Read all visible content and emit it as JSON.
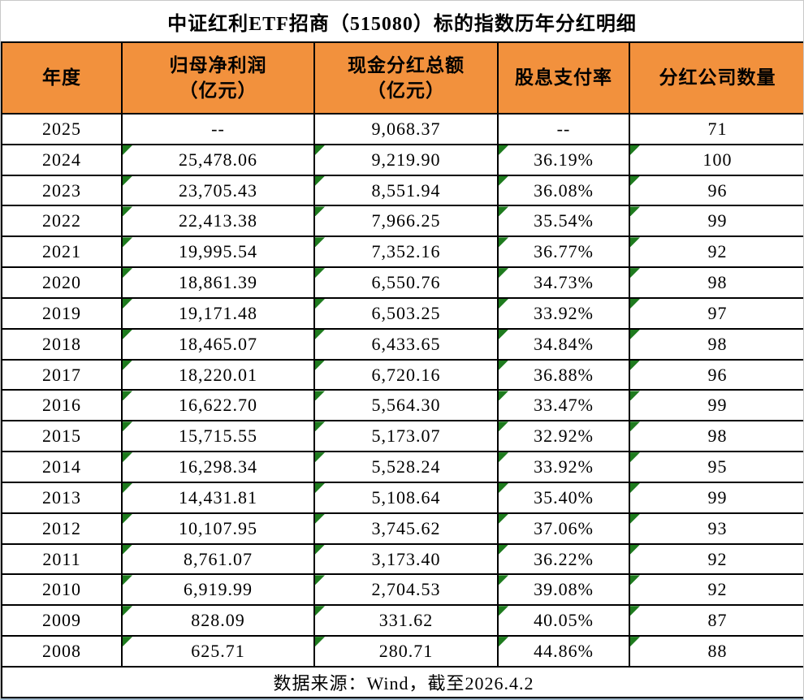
{
  "title": "中证红利ETF招商（515080）标的指数历年分红明细",
  "footer": {
    "source": "数据来源：Wind，截至2026.4.2"
  },
  "colors": {
    "header_bg": "#F2913D",
    "flag_green": "#1E7B1E",
    "border": "#000000"
  },
  "table": {
    "columns": [
      {
        "label": "年度"
      },
      {
        "label": "归母净利润",
        "sub": "（亿元）"
      },
      {
        "label": "现金分红总额",
        "sub": "（亿元）"
      },
      {
        "label": "股息支付率"
      },
      {
        "label": "分红公司数量"
      }
    ],
    "rows": [
      {
        "year": "2025",
        "profit": "--",
        "dividend": "9,068.37",
        "payout": "--",
        "companies": "71",
        "flagged": false
      },
      {
        "year": "2024",
        "profit": "25,478.06",
        "dividend": "9,219.90",
        "payout": "36.19%",
        "companies": "100",
        "flagged": true
      },
      {
        "year": "2023",
        "profit": "23,705.43",
        "dividend": "8,551.94",
        "payout": "36.08%",
        "companies": "96",
        "flagged": true
      },
      {
        "year": "2022",
        "profit": "22,413.38",
        "dividend": "7,966.25",
        "payout": "35.54%",
        "companies": "99",
        "flagged": true
      },
      {
        "year": "2021",
        "profit": "19,995.54",
        "dividend": "7,352.16",
        "payout": "36.77%",
        "companies": "92",
        "flagged": true
      },
      {
        "year": "2020",
        "profit": "18,861.39",
        "dividend": "6,550.76",
        "payout": "34.73%",
        "companies": "98",
        "flagged": true
      },
      {
        "year": "2019",
        "profit": "19,171.48",
        "dividend": "6,503.25",
        "payout": "33.92%",
        "companies": "97",
        "flagged": true
      },
      {
        "year": "2018",
        "profit": "18,465.07",
        "dividend": "6,433.65",
        "payout": "34.84%",
        "companies": "98",
        "flagged": true
      },
      {
        "year": "2017",
        "profit": "18,220.01",
        "dividend": "6,720.16",
        "payout": "36.88%",
        "companies": "96",
        "flagged": true
      },
      {
        "year": "2016",
        "profit": "16,622.70",
        "dividend": "5,564.30",
        "payout": "33.47%",
        "companies": "99",
        "flagged": true
      },
      {
        "year": "2015",
        "profit": "15,715.55",
        "dividend": "5,173.07",
        "payout": "32.92%",
        "companies": "98",
        "flagged": true
      },
      {
        "year": "2014",
        "profit": "16,298.34",
        "dividend": "5,528.24",
        "payout": "33.92%",
        "companies": "95",
        "flagged": true
      },
      {
        "year": "2013",
        "profit": "14,431.81",
        "dividend": "5,108.64",
        "payout": "35.40%",
        "companies": "99",
        "flagged": true
      },
      {
        "year": "2012",
        "profit": "10,107.95",
        "dividend": "3,745.62",
        "payout": "37.06%",
        "companies": "93",
        "flagged": true
      },
      {
        "year": "2011",
        "profit": "8,761.07",
        "dividend": "3,173.40",
        "payout": "36.22%",
        "companies": "92",
        "flagged": true
      },
      {
        "year": "2010",
        "profit": "6,919.99",
        "dividend": "2,704.53",
        "payout": "39.08%",
        "companies": "92",
        "flagged": true
      },
      {
        "year": "2009",
        "profit": "828.09",
        "dividend": "331.62",
        "payout": "40.05%",
        "companies": "87",
        "flagged": true
      },
      {
        "year": "2008",
        "profit": "625.71",
        "dividend": "280.71",
        "payout": "44.86%",
        "companies": "88",
        "flagged": true
      }
    ]
  },
  "chart_data": {
    "type": "table",
    "title": "中证红利ETF招商（515080）标的指数历年分红明细",
    "columns": [
      "年度",
      "归母净利润（亿元）",
      "现金分红总额（亿元）",
      "股息支付率",
      "分红公司数量"
    ],
    "years": [
      2025,
      2024,
      2023,
      2022,
      2021,
      2020,
      2019,
      2018,
      2017,
      2016,
      2015,
      2014,
      2013,
      2012,
      2011,
      2010,
      2009,
      2008
    ],
    "series": [
      {
        "name": "归母净利润（亿元）",
        "values": [
          null,
          25478.06,
          23705.43,
          22413.38,
          19995.54,
          18861.39,
          19171.48,
          18465.07,
          18220.01,
          16622.7,
          15715.55,
          16298.34,
          14431.81,
          10107.95,
          8761.07,
          6919.99,
          828.09,
          625.71
        ]
      },
      {
        "name": "现金分红总额（亿元）",
        "values": [
          9068.37,
          9219.9,
          8551.94,
          7966.25,
          7352.16,
          6550.76,
          6503.25,
          6433.65,
          6720.16,
          5564.3,
          5173.07,
          5528.24,
          5108.64,
          3745.62,
          3173.4,
          2704.53,
          331.62,
          280.71
        ]
      },
      {
        "name": "股息支付率(%)",
        "values": [
          null,
          36.19,
          36.08,
          35.54,
          36.77,
          34.73,
          33.92,
          34.84,
          36.88,
          33.47,
          32.92,
          33.92,
          35.4,
          37.06,
          36.22,
          39.08,
          40.05,
          44.86
        ]
      },
      {
        "name": "分红公司数量",
        "values": [
          71,
          100,
          96,
          99,
          92,
          98,
          97,
          98,
          96,
          99,
          98,
          95,
          99,
          93,
          92,
          92,
          87,
          88
        ]
      }
    ],
    "source_note": "数据来源：Wind，截至2026.4.2"
  }
}
